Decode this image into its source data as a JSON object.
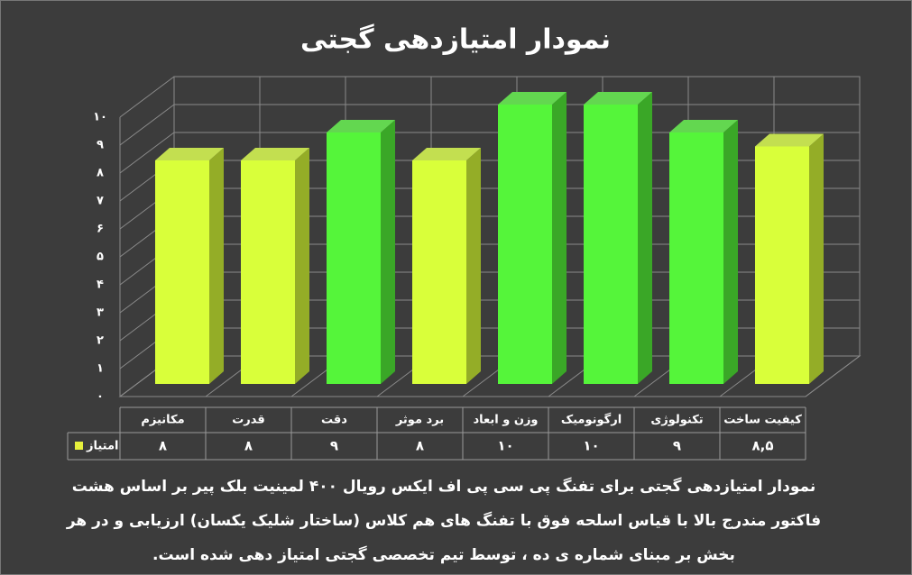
{
  "chart_data": {
    "type": "bar",
    "title": "نمودار امتیازدهی گجتی",
    "categories": [
      "مکانیزم",
      "قدرت",
      "دقت",
      "برد موثر",
      "وزن و ابعاد",
      "ارگونومیک",
      "تکنولوژی",
      "کیفیت ساخت"
    ],
    "series": [
      {
        "name": "امتیاز",
        "color": "#e6f03c",
        "colors": [
          "#d9ff3a",
          "#d9ff3a",
          "#55f53a",
          "#d9ff3a",
          "#55f53a",
          "#55f53a",
          "#55f53a",
          "#d9ff3a"
        ],
        "values": [
          8,
          8,
          9,
          8,
          10,
          10,
          9,
          8.5
        ],
        "value_labels": [
          "۸",
          "۸",
          "۹",
          "۸",
          "۱۰",
          "۱۰",
          "۹",
          "۸,۵"
        ]
      }
    ],
    "ylim": [
      0,
      10
    ],
    "yticks": [
      {
        "value": 0,
        "label": "۰"
      },
      {
        "value": 1,
        "label": "۱"
      },
      {
        "value": 2,
        "label": "۲"
      },
      {
        "value": 3,
        "label": "۳"
      },
      {
        "value": 4,
        "label": "۴"
      },
      {
        "value": 5,
        "label": "۵"
      },
      {
        "value": 6,
        "label": "۶"
      },
      {
        "value": 7,
        "label": "۷"
      },
      {
        "value": 8,
        "label": "۸"
      },
      {
        "value": 9,
        "label": "۹"
      },
      {
        "value": 10,
        "label": "۱۰"
      }
    ],
    "grid": true,
    "caption": [
      "نمودار امتیازدهی گجتی برای تفنگ پی سی پی اف ایکس رویال ۴۰۰ لمینیت بلک پیر بر اساس هشت",
      "فاکتور مندرج بالا با قیاس اسلحه فوق با تفنگ های هم کلاس (ساختار شلیک یکسان) ارزیابی و در هر",
      "بخش بر مبنای شماره ی ده ، توسط تیم تخصصی گجتی امتیاز دهی شده است."
    ]
  }
}
